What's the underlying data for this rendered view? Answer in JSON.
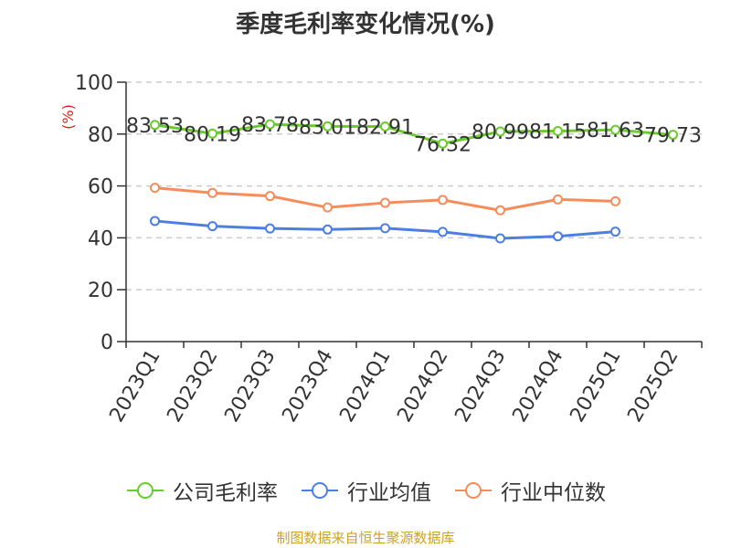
{
  "title": "季度毛利率变化情况(%)",
  "source_text": "制图数据来自恒生聚源数据库",
  "colors": {
    "company": "#6acb2c",
    "industry_avg": "#4c7fe0",
    "industry_median": "#f58c5a",
    "ylabel": "#e0201b",
    "grid": "#cccccc",
    "axis": "#333333",
    "source": "#c9a227"
  },
  "chart_data": {
    "type": "line",
    "title": "季度毛利率变化情况(%)",
    "xlabel": "",
    "ylabel": "(%)",
    "ylim": [
      0,
      100
    ],
    "yticks": [
      0,
      20,
      40,
      60,
      80,
      100
    ],
    "grid": true,
    "legend_position": "bottom",
    "categories": [
      "2023Q1",
      "2023Q2",
      "2023Q3",
      "2023Q4",
      "2024Q1",
      "2024Q2",
      "2024Q3",
      "2024Q4",
      "2025Q1",
      "2025Q2"
    ],
    "series": [
      {
        "name": "公司毛利率",
        "color_key": "company",
        "values": [
          83.53,
          80.19,
          83.78,
          83.01,
          82.91,
          76.32,
          80.99,
          81.15,
          81.63,
          79.73
        ],
        "labels": [
          "83.53",
          "80.19",
          "83.78",
          "83.01",
          "82.91",
          "76.32",
          "80.99",
          "81.15",
          "81.63",
          "79.73"
        ],
        "show_labels": true
      },
      {
        "name": "行业均值",
        "color_key": "industry_avg",
        "values": [
          46.5,
          44.5,
          43.6,
          43.2,
          43.7,
          42.3,
          39.8,
          40.6,
          42.4,
          null
        ],
        "show_labels": false
      },
      {
        "name": "行业中位数",
        "color_key": "industry_median",
        "values": [
          59.3,
          57.3,
          56.1,
          51.7,
          53.5,
          54.6,
          50.6,
          54.8,
          54.1,
          null
        ],
        "show_labels": false
      }
    ]
  }
}
